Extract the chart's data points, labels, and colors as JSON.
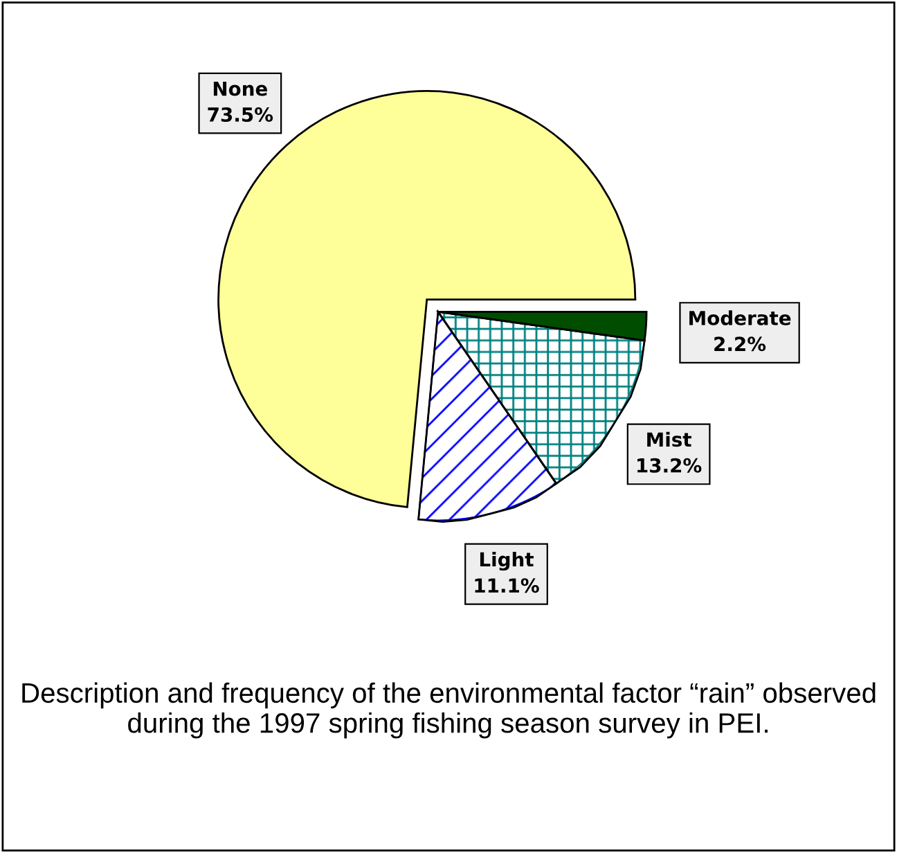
{
  "chart_data": {
    "type": "pie",
    "categories": [
      "None",
      "Light",
      "Mist",
      "Moderate"
    ],
    "values": [
      73.5,
      11.1,
      13.2,
      2.2
    ],
    "colors": [
      "#ffff99",
      "#0000ff",
      "#008080",
      "#004d00"
    ],
    "value_labels": [
      "73.5%",
      "11.1%",
      "13.2%",
      "2.2%"
    ],
    "annotations": [
      "Description and frequency of the environmental factor “rain” observed during the 1997 spring fishing season survey in PEI."
    ]
  }
}
